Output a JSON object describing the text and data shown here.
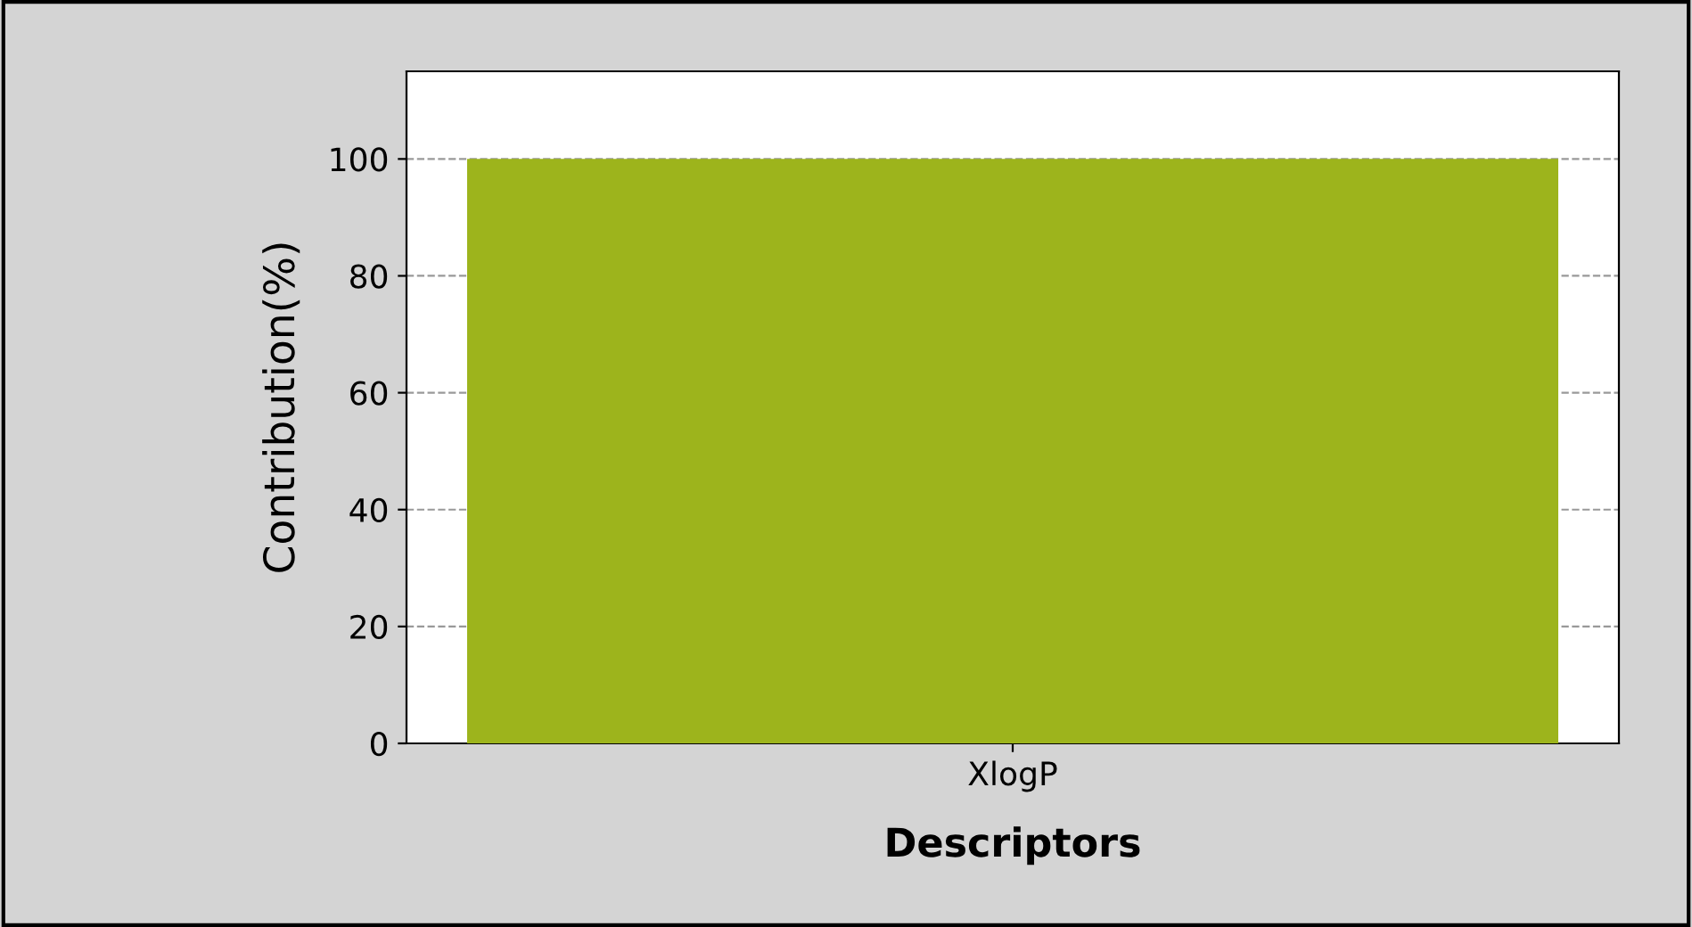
{
  "chart_data": {
    "type": "bar",
    "xlabel": "Descriptors",
    "ylabel": "Contribution(%)",
    "categories": [
      "XlogP"
    ],
    "series": [
      {
        "color": "#9db41c",
        "values": [
          100
        ]
      }
    ],
    "ylim": [
      0,
      115
    ],
    "yticks": [
      0,
      20,
      40,
      60,
      80,
      100
    ],
    "grid": "y"
  }
}
